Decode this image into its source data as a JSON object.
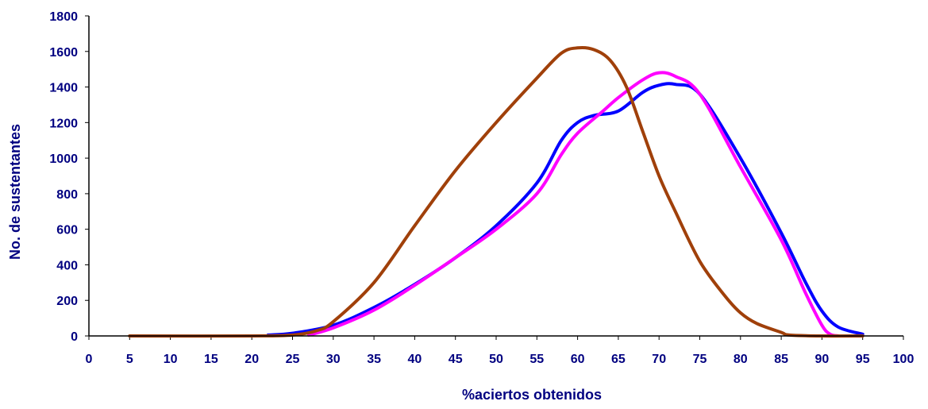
{
  "chart_data": {
    "type": "line",
    "title": "",
    "xlabel": "%aciertos obtenidos",
    "ylabel": "No. de sustentantes",
    "xlim": [
      0,
      100
    ],
    "ylim": [
      0,
      1800
    ],
    "xticks": [
      "0",
      "5",
      "10",
      "15",
      "20",
      "25",
      "30",
      "35",
      "40",
      "45",
      "50",
      "55",
      "60",
      "65",
      "70",
      "75",
      "80",
      "85",
      "90",
      "95",
      "100"
    ],
    "yticks": [
      "0",
      "200",
      "400",
      "600",
      "800",
      "1000",
      "1200",
      "1400",
      "1600",
      "1800"
    ],
    "grid": false,
    "legend": "none",
    "series": [
      {
        "color": "#0000ff",
        "points": [
          [
            22,
            5
          ],
          [
            25,
            15
          ],
          [
            30,
            60
          ],
          [
            35,
            160
          ],
          [
            40,
            290
          ],
          [
            45,
            440
          ],
          [
            50,
            620
          ],
          [
            55,
            860
          ],
          [
            58,
            1100
          ],
          [
            60,
            1200
          ],
          [
            62,
            1240
          ],
          [
            65,
            1265
          ],
          [
            68,
            1370
          ],
          [
            70,
            1410
          ],
          [
            72,
            1415
          ],
          [
            75,
            1360
          ],
          [
            80,
            1000
          ],
          [
            85,
            580
          ],
          [
            88,
            300
          ],
          [
            90,
            140
          ],
          [
            92,
            50
          ],
          [
            95,
            10
          ]
        ]
      },
      {
        "color": "#ff00ff",
        "points": [
          [
            27,
            5
          ],
          [
            30,
            45
          ],
          [
            35,
            145
          ],
          [
            40,
            285
          ],
          [
            45,
            440
          ],
          [
            50,
            600
          ],
          [
            55,
            800
          ],
          [
            58,
            1020
          ],
          [
            60,
            1140
          ],
          [
            63,
            1260
          ],
          [
            65,
            1340
          ],
          [
            68,
            1440
          ],
          [
            70,
            1480
          ],
          [
            72,
            1460
          ],
          [
            75,
            1360
          ],
          [
            80,
            950
          ],
          [
            85,
            540
          ],
          [
            88,
            240
          ],
          [
            90,
            60
          ],
          [
            91,
            10
          ],
          [
            92,
            0
          ]
        ]
      },
      {
        "color": "#a0400a",
        "points": [
          [
            5,
            0
          ],
          [
            20,
            0
          ],
          [
            25,
            5
          ],
          [
            28,
            30
          ],
          [
            30,
            80
          ],
          [
            35,
            300
          ],
          [
            40,
            620
          ],
          [
            45,
            930
          ],
          [
            50,
            1200
          ],
          [
            55,
            1450
          ],
          [
            58,
            1590
          ],
          [
            60,
            1620
          ],
          [
            62,
            1610
          ],
          [
            64,
            1550
          ],
          [
            66,
            1400
          ],
          [
            68,
            1150
          ],
          [
            70,
            900
          ],
          [
            72,
            700
          ],
          [
            75,
            420
          ],
          [
            78,
            230
          ],
          [
            80,
            130
          ],
          [
            82,
            70
          ],
          [
            85,
            20
          ],
          [
            86,
            5
          ],
          [
            90,
            0
          ],
          [
            95,
            0
          ]
        ]
      }
    ]
  }
}
